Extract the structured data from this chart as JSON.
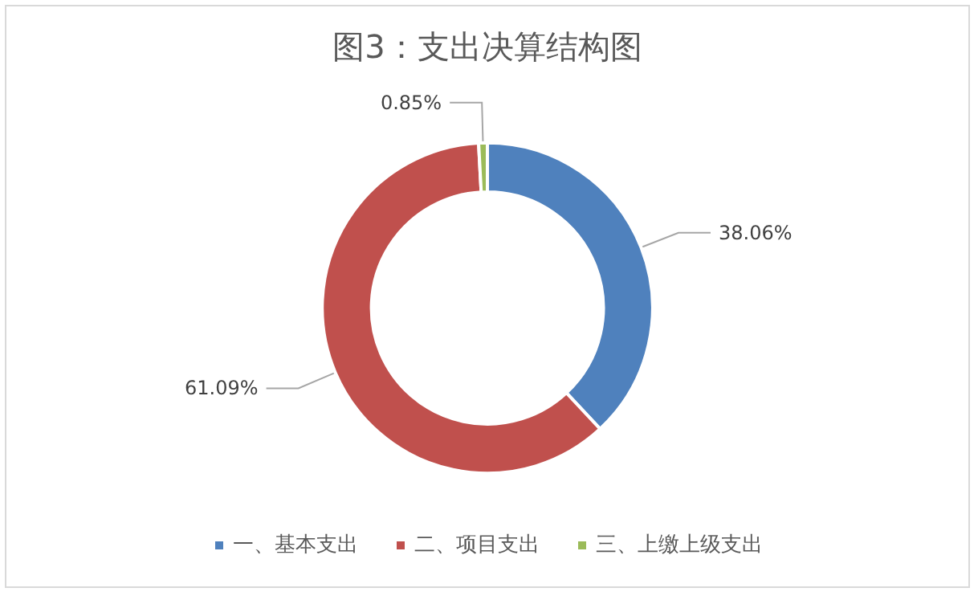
{
  "chart_data": {
    "type": "donut",
    "title": "图3：支出决算结构图",
    "categories": [
      "一、基本支出",
      "二、项目支出",
      "三、上缴上级支出"
    ],
    "values": [
      38.06,
      61.09,
      0.85
    ],
    "value_labels": [
      "38.06%",
      "61.09%",
      "0.85%"
    ],
    "colors": [
      "#4f81bd",
      "#c0504d",
      "#9bbb59"
    ],
    "legend": "bottom"
  }
}
